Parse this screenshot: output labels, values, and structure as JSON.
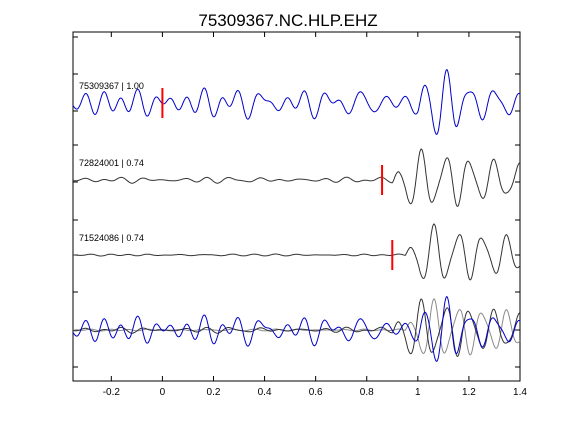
{
  "chart_data": {
    "type": "line",
    "title": "75309367.NC.HLP.EHZ",
    "xlabel": "",
    "ylabel": "",
    "xlim": [
      -0.35,
      1.4
    ],
    "x_ticks": [
      -0.2,
      0,
      0.2,
      0.4,
      0.6,
      0.8,
      1,
      1.2,
      1.4
    ],
    "x_tick_labels": [
      "-0.2",
      "0",
      "0.2",
      "0.4",
      "0.6",
      "0.8",
      "1",
      "1.2",
      "1.4"
    ],
    "grid": false,
    "colors": {
      "reference": "#0000cc",
      "correlated": "#333333",
      "pick_marker": "#ff0000",
      "overlay_gray": "#8a8a8a"
    },
    "series": [
      {
        "name": "75309367 | 1.00",
        "role": "reference",
        "pick_time": 0.0,
        "waveform": {
          "noise_amp": 0.55,
          "early_amp": 0.55,
          "signal_amp": 1.0,
          "signal_start": 1.0,
          "freq": 10.5,
          "seed": 3
        }
      },
      {
        "name": "72824001 | 0.74",
        "role": "correlated",
        "pick_time": 0.86,
        "waveform": {
          "noise_amp": 0.12,
          "early_amp": 0.12,
          "signal_amp": 1.0,
          "signal_start": 0.9,
          "freq": 10.5,
          "seed": 7
        }
      },
      {
        "name": "71524086 | 0.74",
        "role": "correlated",
        "pick_time": 0.9,
        "waveform": {
          "noise_amp": 0.04,
          "early_amp": 0.04,
          "signal_amp": 1.0,
          "signal_start": 0.95,
          "freq": 10.5,
          "seed": 11
        }
      }
    ],
    "overlay": {
      "description": "all traces superimposed",
      "include": [
        0,
        1,
        2
      ]
    }
  }
}
